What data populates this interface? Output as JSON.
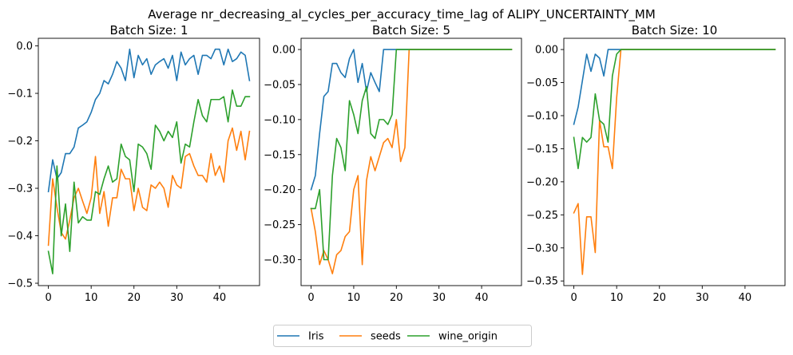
{
  "figure_title": "Average nr_decreasing_al_cycles_per_accuracy_time_lag of ALIPY_UNCERTAINTY_MM",
  "legend": {
    "placement": "bottom-center",
    "entries": [
      "Iris",
      "seeds",
      "wine_origin"
    ]
  },
  "colors": {
    "Iris": "#1f77b4",
    "seeds": "#ff7f0e",
    "wine_origin": "#2ca02c"
  },
  "chart_data": [
    {
      "type": "line",
      "title": "Batch Size: 1",
      "xlim": [
        -2.35,
        49.35
      ],
      "ylim": [
        -0.505,
        0.016
      ],
      "xticks": [
        0,
        10,
        20,
        30,
        40
      ],
      "yticks": [
        -0.5,
        -0.4,
        -0.3,
        -0.2,
        -0.1,
        0.0
      ],
      "ytick_labels": [
        "−0.5",
        "−0.4",
        "−0.3",
        "−0.2",
        "−0.1",
        "0.0"
      ],
      "series": [
        {
          "name": "Iris",
          "values": [
            -0.307,
            -0.24,
            -0.28,
            -0.267,
            -0.227,
            -0.227,
            -0.213,
            -0.173,
            -0.167,
            -0.16,
            -0.14,
            -0.113,
            -0.1,
            -0.073,
            -0.08,
            -0.06,
            -0.033,
            -0.047,
            -0.073,
            -0.007,
            -0.067,
            -0.02,
            -0.04,
            -0.027,
            -0.06,
            -0.04,
            -0.033,
            -0.027,
            -0.047,
            -0.02,
            -0.073,
            -0.013,
            -0.04,
            -0.027,
            -0.02,
            -0.06,
            -0.02,
            -0.02,
            -0.027,
            -0.007,
            -0.007,
            -0.04,
            -0.007,
            -0.033,
            -0.027,
            -0.013,
            -0.02,
            -0.073
          ]
        },
        {
          "name": "seeds",
          "values": [
            -0.42,
            -0.28,
            -0.34,
            -0.393,
            -0.407,
            -0.367,
            -0.32,
            -0.3,
            -0.327,
            -0.353,
            -0.32,
            -0.233,
            -0.353,
            -0.307,
            -0.38,
            -0.32,
            -0.32,
            -0.26,
            -0.28,
            -0.28,
            -0.347,
            -0.3,
            -0.34,
            -0.347,
            -0.293,
            -0.3,
            -0.287,
            -0.3,
            -0.34,
            -0.273,
            -0.293,
            -0.3,
            -0.233,
            -0.227,
            -0.253,
            -0.273,
            -0.273,
            -0.287,
            -0.227,
            -0.273,
            -0.253,
            -0.287,
            -0.2,
            -0.173,
            -0.22,
            -0.18,
            -0.24,
            -0.18
          ]
        },
        {
          "name": "wine_origin",
          "values": [
            -0.433,
            -0.48,
            -0.253,
            -0.4,
            -0.333,
            -0.433,
            -0.287,
            -0.373,
            -0.36,
            -0.367,
            -0.367,
            -0.307,
            -0.313,
            -0.28,
            -0.253,
            -0.287,
            -0.28,
            -0.207,
            -0.233,
            -0.24,
            -0.307,
            -0.207,
            -0.213,
            -0.227,
            -0.26,
            -0.167,
            -0.18,
            -0.2,
            -0.18,
            -0.193,
            -0.16,
            -0.247,
            -0.207,
            -0.213,
            -0.16,
            -0.113,
            -0.147,
            -0.16,
            -0.113,
            -0.113,
            -0.113,
            -0.107,
            -0.16,
            -0.093,
            -0.127,
            -0.127,
            -0.107,
            -0.107
          ]
        }
      ]
    },
    {
      "type": "line",
      "title": "Batch Size: 5",
      "xlim": [
        -2.35,
        49.35
      ],
      "ylim": [
        -0.337,
        0.016
      ],
      "xticks": [
        0,
        10,
        20,
        30,
        40
      ],
      "yticks": [
        -0.3,
        -0.25,
        -0.2,
        -0.15,
        -0.1,
        -0.05,
        0.0
      ],
      "ytick_labels": [
        "−0.30",
        "−0.25",
        "−0.20",
        "−0.15",
        "−0.10",
        "−0.05",
        "0.00"
      ],
      "series": [
        {
          "name": "Iris",
          "values": [
            -0.2,
            -0.18,
            -0.12,
            -0.067,
            -0.06,
            -0.02,
            -0.02,
            -0.033,
            -0.04,
            -0.013,
            0.0,
            -0.047,
            -0.02,
            -0.06,
            -0.033,
            -0.047,
            -0.06,
            0.0,
            0.0,
            0.0,
            0.0,
            0.0,
            0.0,
            0.0,
            0.0,
            0.0,
            0.0,
            0.0,
            0.0,
            0.0,
            0.0,
            0.0,
            0.0,
            0.0,
            0.0,
            0.0,
            0.0,
            0.0,
            0.0,
            0.0,
            0.0,
            0.0,
            0.0,
            0.0,
            0.0,
            0.0,
            0.0,
            0.0
          ]
        },
        {
          "name": "seeds",
          "values": [
            -0.227,
            -0.26,
            -0.307,
            -0.287,
            -0.3,
            -0.32,
            -0.293,
            -0.287,
            -0.267,
            -0.26,
            -0.2,
            -0.18,
            -0.307,
            -0.187,
            -0.153,
            -0.173,
            -0.153,
            -0.133,
            -0.127,
            -0.14,
            -0.1,
            -0.16,
            -0.14,
            0.0,
            0.0,
            0.0,
            0.0,
            0.0,
            0.0,
            0.0,
            0.0,
            0.0,
            0.0,
            0.0,
            0.0,
            0.0,
            0.0,
            0.0,
            0.0,
            0.0,
            0.0,
            0.0,
            0.0,
            0.0,
            0.0,
            0.0,
            0.0,
            0.0
          ]
        },
        {
          "name": "wine_origin",
          "values": [
            -0.227,
            -0.227,
            -0.2,
            -0.3,
            -0.3,
            -0.18,
            -0.127,
            -0.14,
            -0.173,
            -0.073,
            -0.093,
            -0.12,
            -0.073,
            -0.053,
            -0.12,
            -0.127,
            -0.1,
            -0.1,
            -0.107,
            -0.093,
            0.0,
            0.0,
            0.0,
            0.0,
            0.0,
            0.0,
            0.0,
            0.0,
            0.0,
            0.0,
            0.0,
            0.0,
            0.0,
            0.0,
            0.0,
            0.0,
            0.0,
            0.0,
            0.0,
            0.0,
            0.0,
            0.0,
            0.0,
            0.0,
            0.0,
            0.0,
            0.0,
            0.0
          ]
        }
      ]
    },
    {
      "type": "line",
      "title": "Batch Size: 10",
      "xlim": [
        -2.35,
        49.35
      ],
      "ylim": [
        -0.357,
        0.017
      ],
      "xticks": [
        0,
        10,
        20,
        30,
        40
      ],
      "yticks": [
        -0.35,
        -0.3,
        -0.25,
        -0.2,
        -0.15,
        -0.1,
        -0.05,
        0.0
      ],
      "ytick_labels": [
        "−0.35",
        "−0.30",
        "−0.25",
        "−0.20",
        "−0.15",
        "−0.10",
        "−0.05",
        "0.00"
      ],
      "series": [
        {
          "name": "Iris",
          "values": [
            -0.113,
            -0.087,
            -0.047,
            -0.007,
            -0.033,
            -0.007,
            -0.013,
            -0.04,
            0.0,
            0.0,
            0.0,
            0.0,
            0.0,
            0.0,
            0.0,
            0.0,
            0.0,
            0.0,
            0.0,
            0.0,
            0.0,
            0.0,
            0.0,
            0.0,
            0.0,
            0.0,
            0.0,
            0.0,
            0.0,
            0.0,
            0.0,
            0.0,
            0.0,
            0.0,
            0.0,
            0.0,
            0.0,
            0.0,
            0.0,
            0.0,
            0.0,
            0.0,
            0.0,
            0.0,
            0.0,
            0.0,
            0.0,
            0.0
          ]
        },
        {
          "name": "seeds",
          "values": [
            -0.247,
            -0.233,
            -0.34,
            -0.253,
            -0.253,
            -0.307,
            -0.107,
            -0.147,
            -0.147,
            -0.18,
            -0.073,
            0.0,
            0.0,
            0.0,
            0.0,
            0.0,
            0.0,
            0.0,
            0.0,
            0.0,
            0.0,
            0.0,
            0.0,
            0.0,
            0.0,
            0.0,
            0.0,
            0.0,
            0.0,
            0.0,
            0.0,
            0.0,
            0.0,
            0.0,
            0.0,
            0.0,
            0.0,
            0.0,
            0.0,
            0.0,
            0.0,
            0.0,
            0.0,
            0.0,
            0.0,
            0.0,
            0.0,
            0.0
          ]
        },
        {
          "name": "wine_origin",
          "values": [
            -0.133,
            -0.18,
            -0.133,
            -0.14,
            -0.133,
            -0.067,
            -0.107,
            -0.113,
            -0.14,
            -0.04,
            -0.007,
            0.0,
            0.0,
            0.0,
            0.0,
            0.0,
            0.0,
            0.0,
            0.0,
            0.0,
            0.0,
            0.0,
            0.0,
            0.0,
            0.0,
            0.0,
            0.0,
            0.0,
            0.0,
            0.0,
            0.0,
            0.0,
            0.0,
            0.0,
            0.0,
            0.0,
            0.0,
            0.0,
            0.0,
            0.0,
            0.0,
            0.0,
            0.0,
            0.0,
            0.0,
            0.0,
            0.0,
            0.0
          ]
        }
      ]
    }
  ]
}
